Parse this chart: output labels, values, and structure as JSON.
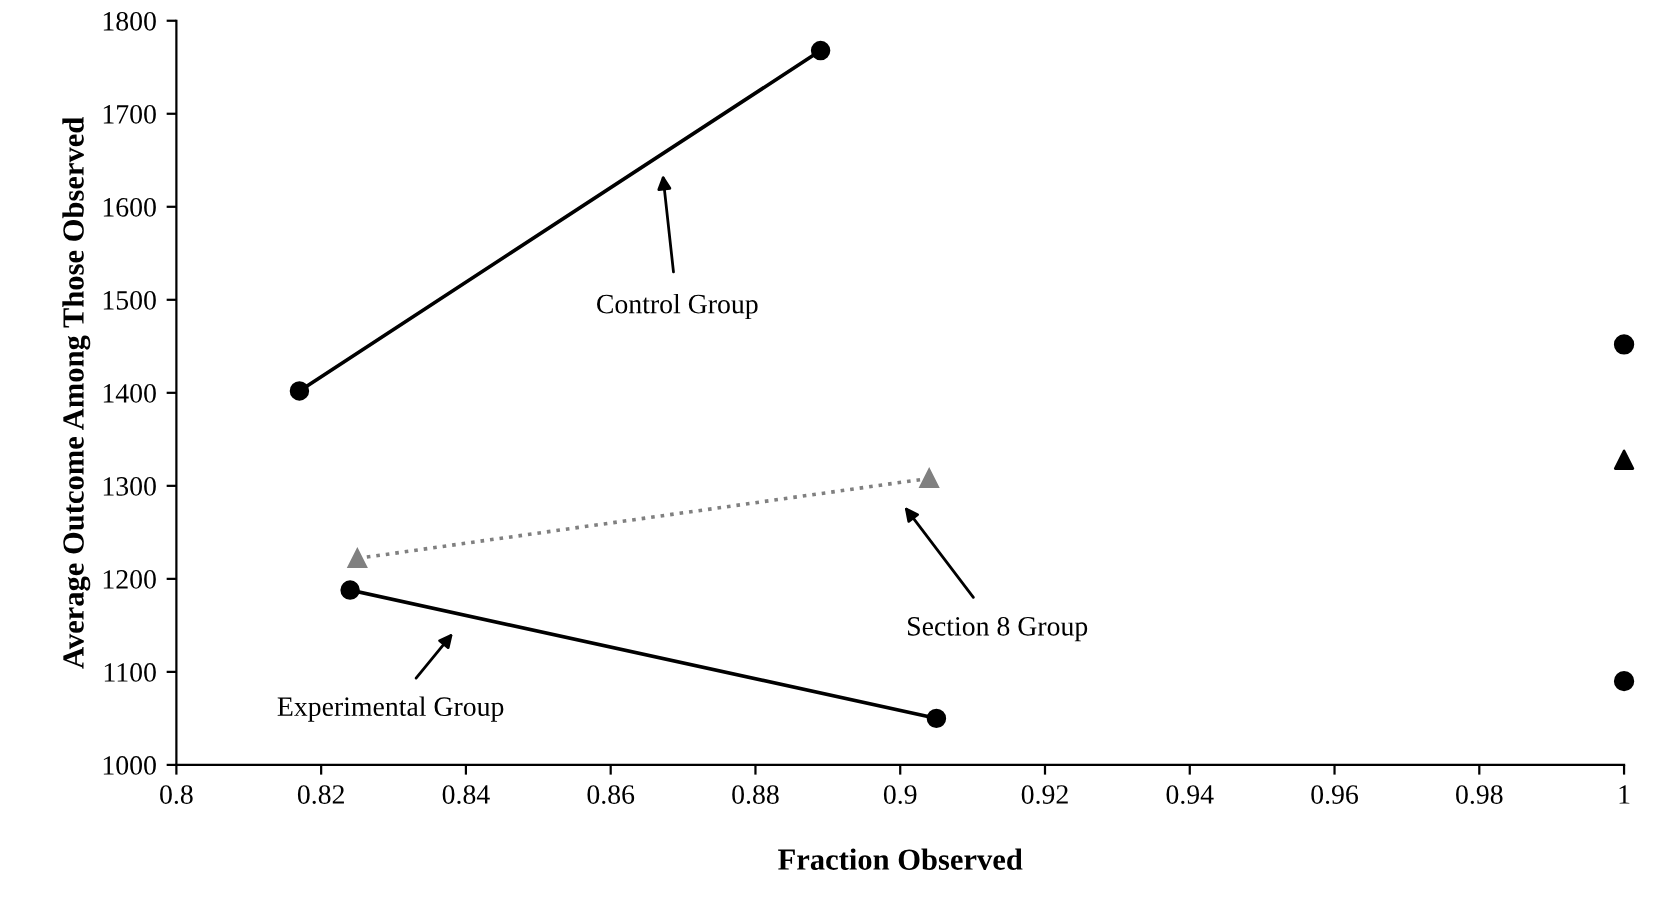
{
  "chart_data": {
    "type": "line",
    "xlabel": "Fraction Observed",
    "ylabel": "Average Outcome Among Those Observed",
    "xlim": [
      0.8,
      1
    ],
    "xticks": [
      0.8,
      0.82,
      0.84,
      0.86,
      0.88,
      0.9,
      0.92,
      0.94,
      0.96,
      0.98,
      1
    ],
    "ylim": [
      1000,
      1800
    ],
    "yticks": [
      1000,
      1100,
      1200,
      1300,
      1400,
      1500,
      1600,
      1700,
      1800
    ],
    "grid": false,
    "legend": false,
    "series": [
      {
        "x": [
          0.817,
          0.889
        ],
        "values": [
          1402,
          1768
        ],
        "color": "#000000",
        "marker": "circle",
        "line_style": "solid"
      },
      {
        "x": [
          0.825,
          0.904
        ],
        "values": [
          1222,
          1308
        ],
        "color": "#808080",
        "marker": "triangle",
        "line_style": "dotted"
      },
      {
        "x": [
          0.824,
          0.905
        ],
        "values": [
          1188,
          1050
        ],
        "color": "#000000",
        "marker": "circle",
        "line_style": "solid"
      },
      {
        "type": "scatter",
        "x": [
          1
        ],
        "values": [
          1452
        ],
        "color": "#000000",
        "marker": "circle"
      },
      {
        "type": "scatter",
        "x": [
          1
        ],
        "values": [
          1328
        ],
        "color": "#000000",
        "marker": "triangle"
      },
      {
        "type": "scatter",
        "x": [
          1
        ],
        "values": [
          1090
        ],
        "color": "#000000",
        "marker": "circle"
      }
    ],
    "annotations": [
      "Control Group",
      "Section 8 Group",
      "Experimental Group"
    ]
  }
}
